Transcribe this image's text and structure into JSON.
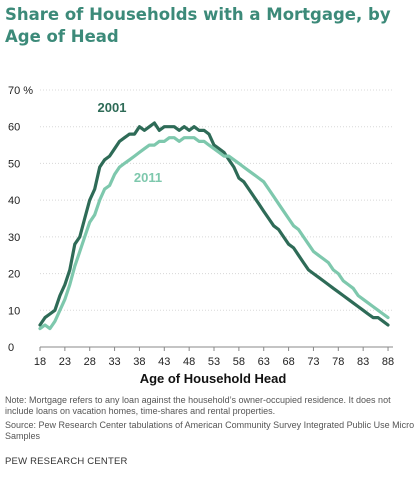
{
  "chart_data": {
    "type": "line",
    "title": "Share of Households with a Mortgage, by Age of Head",
    "xlabel": "Age of Household Head",
    "ylabel": "",
    "xlim": [
      18,
      89
    ],
    "ylim": [
      0,
      70
    ],
    "xticks": [
      18,
      23,
      28,
      33,
      38,
      43,
      48,
      53,
      58,
      63,
      68,
      73,
      78,
      83,
      88
    ],
    "yticks": [
      "0",
      "10",
      "20",
      "30",
      "40",
      "50",
      "60",
      "70 %"
    ],
    "grid": true,
    "series": [
      {
        "name": "2001",
        "color": "#2e6b57",
        "x": [
          18,
          19,
          20,
          21,
          22,
          23,
          24,
          25,
          26,
          27,
          28,
          29,
          30,
          31,
          32,
          33,
          34,
          35,
          36,
          37,
          38,
          39,
          40,
          41,
          42,
          43,
          44,
          45,
          46,
          47,
          48,
          49,
          50,
          51,
          52,
          53,
          54,
          55,
          56,
          57,
          58,
          59,
          60,
          61,
          62,
          63,
          64,
          65,
          66,
          67,
          68,
          69,
          70,
          71,
          72,
          73,
          74,
          75,
          76,
          77,
          78,
          79,
          80,
          81,
          82,
          83,
          84,
          85,
          86,
          87,
          88
        ],
        "values": [
          6,
          8,
          9,
          10,
          14,
          17,
          21,
          28,
          30,
          35,
          40,
          43,
          49,
          51,
          52,
          54,
          56,
          57,
          58,
          58,
          60,
          59,
          60,
          61,
          59,
          60,
          60,
          60,
          59,
          60,
          59,
          60,
          59,
          59,
          58,
          55,
          54,
          53,
          51,
          49,
          46,
          45,
          43,
          41,
          39,
          37,
          35,
          33,
          32,
          30,
          28,
          27,
          25,
          23,
          21,
          20,
          19,
          18,
          17,
          16,
          15,
          14,
          13,
          12,
          11,
          10,
          9,
          8,
          8,
          7,
          6
        ]
      },
      {
        "name": "2011",
        "color": "#7ec8ad",
        "x": [
          18,
          19,
          20,
          21,
          22,
          23,
          24,
          25,
          26,
          27,
          28,
          29,
          30,
          31,
          32,
          33,
          34,
          35,
          36,
          37,
          38,
          39,
          40,
          41,
          42,
          43,
          44,
          45,
          46,
          47,
          48,
          49,
          50,
          51,
          52,
          53,
          54,
          55,
          56,
          57,
          58,
          59,
          60,
          61,
          62,
          63,
          64,
          65,
          66,
          67,
          68,
          69,
          70,
          71,
          72,
          73,
          74,
          75,
          76,
          77,
          78,
          79,
          80,
          81,
          82,
          83,
          84,
          85,
          86,
          87,
          88
        ],
        "values": [
          5,
          6,
          5,
          7,
          10,
          13,
          17,
          22,
          26,
          30,
          34,
          36,
          40,
          43,
          44,
          47,
          49,
          50,
          51,
          52,
          53,
          54,
          55,
          55,
          56,
          56,
          57,
          57,
          56,
          57,
          57,
          57,
          56,
          56,
          55,
          54,
          53,
          52,
          52,
          51,
          50,
          49,
          48,
          47,
          46,
          45,
          43,
          41,
          39,
          37,
          35,
          33,
          32,
          30,
          28,
          26,
          25,
          24,
          23,
          21,
          20,
          18,
          17,
          16,
          14,
          13,
          12,
          11,
          10,
          9,
          8
        ]
      }
    ]
  },
  "note": "Note: Mortgage refers to any loan against the household’s owner-occupied residence. It does not include loans on vacation homes, time-shares and rental properties.",
  "source": "Source: Pew Research Center tabulations of American Community Survey Integrated Public Use Micro Samples",
  "footer": "PEW RESEARCH CENTER"
}
